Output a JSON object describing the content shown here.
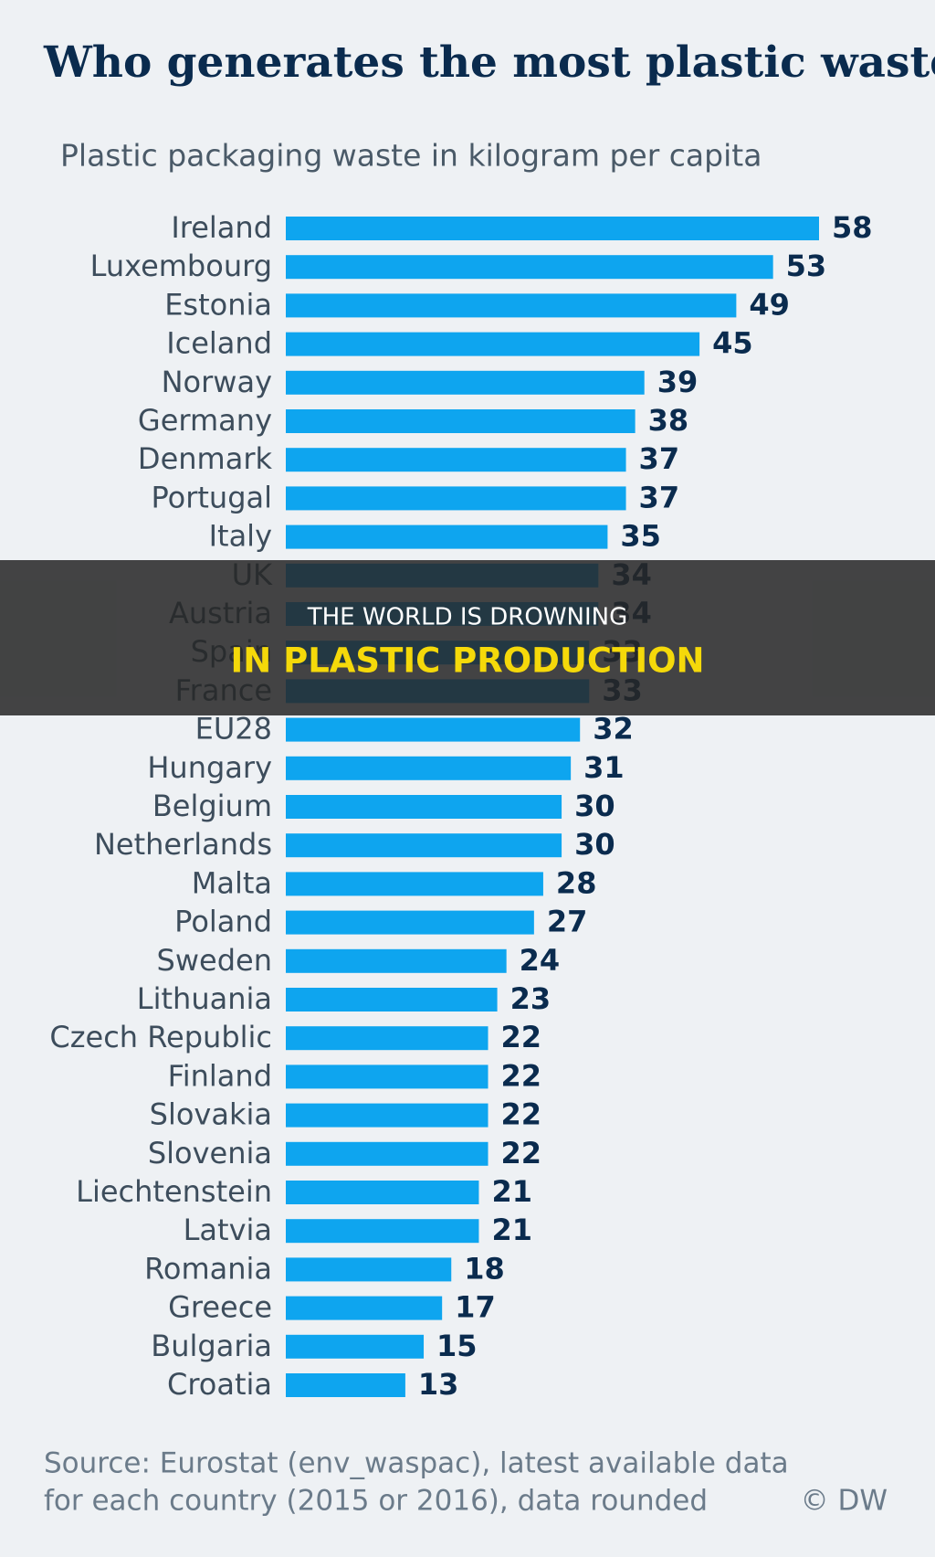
{
  "chart_data": {
    "type": "bar",
    "orientation": "horizontal",
    "title": "Who generates the most plastic waste?",
    "subtitle": "Plastic packaging waste in kilogram per capita",
    "categories": [
      "Ireland",
      "Luxembourg",
      "Estonia",
      "Iceland",
      "Norway",
      "Germany",
      "Denmark",
      "Portugal",
      "Italy",
      "UK",
      "Austria",
      "Spain",
      "France",
      "EU28",
      "Hungary",
      "Belgium",
      "Netherlands",
      "Malta",
      "Poland",
      "Sweden",
      "Lithuania",
      "Czech Republic",
      "Finland",
      "Slovakia",
      "Slovenia",
      "Liechtenstein",
      "Latvia",
      "Romania",
      "Greece",
      "Bulgaria",
      "Croatia"
    ],
    "values": [
      58,
      53,
      49,
      45,
      39,
      38,
      37,
      37,
      35,
      34,
      34,
      33,
      33,
      32,
      31,
      30,
      30,
      28,
      27,
      24,
      23,
      22,
      22,
      22,
      22,
      21,
      21,
      18,
      17,
      15,
      13
    ],
    "color": "#0ea5ef",
    "source": [
      "Source: Eurostat (env_waspac), latest available data",
      "for each country (2015 or 2016), data rounded"
    ],
    "credit": "© DW"
  },
  "overlay": {
    "line1": "THE WORLD IS DROWNING",
    "line2": "IN PLASTIC PRODUCTION"
  }
}
